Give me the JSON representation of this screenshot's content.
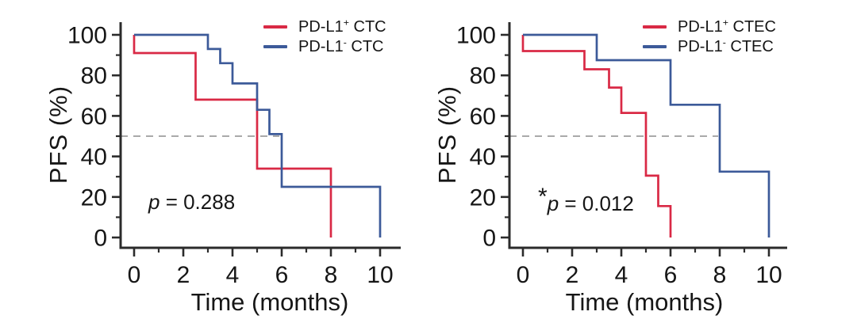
{
  "figure": {
    "description": "Two Kaplan-Meier progression-free survival plots",
    "background": "#ffffff"
  },
  "style": {
    "axis_color": "#2b2b2b",
    "text_color": "#161616",
    "dash_color": "#a9a9a9",
    "red": "#d92945",
    "blue": "#3c5a99"
  },
  "chart_data": [
    {
      "type": "line",
      "subtype": "kaplan-meier-step",
      "title": "",
      "xlabel": "Time (months)",
      "ylabel": "PFS  (%)",
      "xlim": [
        0,
        10.5
      ],
      "ylim": [
        0,
        103
      ],
      "xticks": [
        0,
        2,
        4,
        6,
        8,
        10
      ],
      "yticks": [
        0,
        20,
        40,
        60,
        80,
        100
      ],
      "grid": false,
      "legend_position": "top-right",
      "reference_line": {
        "y": 50,
        "style": "dashed",
        "color": "#a9a9a9"
      },
      "p_value": "p = 0.288",
      "p_star": "",
      "p_italic": "p",
      "p_rest": " = 0.288",
      "series": [
        {
          "name": "PD-L1+ CTC",
          "label_prefix": "PD-L1",
          "label_sup": "+",
          "label_rest": " CTC",
          "color": "#d92945",
          "points": [
            [
              0,
              100
            ],
            [
              0,
              91
            ],
            [
              2.5,
              91
            ],
            [
              2.5,
              68
            ],
            [
              5,
              68
            ],
            [
              5,
              34
            ],
            [
              8,
              34
            ],
            [
              8,
              0
            ]
          ]
        },
        {
          "name": "PD-L1- CTC",
          "label_prefix": "PD-L1",
          "label_sup": "-",
          "label_rest": " CTC",
          "color": "#3c5a99",
          "points": [
            [
              0,
              100
            ],
            [
              3,
              100
            ],
            [
              3,
              93
            ],
            [
              3.5,
              93
            ],
            [
              3.5,
              86
            ],
            [
              4,
              86
            ],
            [
              4,
              76
            ],
            [
              5,
              76
            ],
            [
              5,
              63
            ],
            [
              5.5,
              63
            ],
            [
              5.5,
              51
            ],
            [
              6,
              51
            ],
            [
              6,
              25
            ],
            [
              10,
              25
            ],
            [
              10,
              0
            ]
          ]
        }
      ]
    },
    {
      "type": "line",
      "subtype": "kaplan-meier-step",
      "title": "",
      "xlabel": "Time (months)",
      "ylabel": "PFS  (%)",
      "xlim": [
        0,
        10.5
      ],
      "ylim": [
        0,
        103
      ],
      "xticks": [
        0,
        2,
        4,
        6,
        8,
        10
      ],
      "yticks": [
        0,
        20,
        40,
        60,
        80,
        100
      ],
      "grid": false,
      "legend_position": "top-right",
      "reference_line": {
        "y": 50,
        "style": "dashed",
        "color": "#a9a9a9"
      },
      "p_value": "*p = 0.012",
      "p_star": "*",
      "p_italic": "p",
      "p_rest": " = 0.012",
      "series": [
        {
          "name": "PD-L1+ CTEC",
          "label_prefix": "PD-L1",
          "label_sup": "+",
          "label_rest": " CTEC",
          "color": "#d92945",
          "points": [
            [
              0,
              100
            ],
            [
              0,
              92
            ],
            [
              2.5,
              92
            ],
            [
              2.5,
              83
            ],
            [
              3.5,
              83
            ],
            [
              3.5,
              74
            ],
            [
              4,
              74
            ],
            [
              4,
              61.5
            ],
            [
              5,
              61.5
            ],
            [
              5,
              30.5
            ],
            [
              5.5,
              30.5
            ],
            [
              5.5,
              15.5
            ],
            [
              6,
              15.5
            ],
            [
              6,
              0
            ]
          ]
        },
        {
          "name": "PD-L1- CTEC",
          "label_prefix": "PD-L1",
          "label_sup": "-",
          "label_rest": " CTEC",
          "color": "#3c5a99",
          "points": [
            [
              0,
              100
            ],
            [
              3,
              100
            ],
            [
              3,
              87.5
            ],
            [
              6,
              87.5
            ],
            [
              6,
              65.5
            ],
            [
              8,
              65.5
            ],
            [
              8,
              32.5
            ],
            [
              10,
              32.5
            ],
            [
              10,
              0
            ]
          ]
        }
      ]
    }
  ]
}
